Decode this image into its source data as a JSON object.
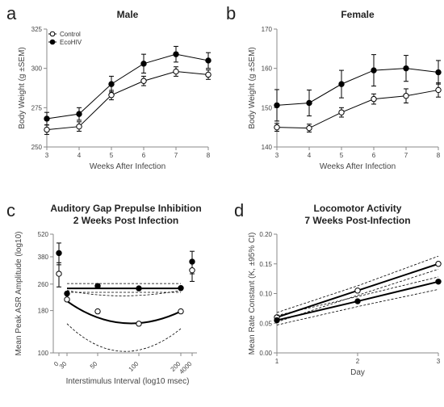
{
  "chart_data": [
    {
      "panel": "a",
      "type": "line",
      "title": "Male",
      "xlabel": "Weeks After Infection",
      "ylabel": "Body Weight (g ±SEM)",
      "x": [
        3,
        4,
        5,
        6,
        7,
        8
      ],
      "xlim": [
        3,
        8
      ],
      "ylim": [
        250,
        325
      ],
      "yticks": [
        250,
        275,
        300,
        325
      ],
      "yticklabels": [
        "250",
        "275",
        "300",
        "325"
      ],
      "xticks": [
        3,
        4,
        5,
        6,
        7,
        8
      ],
      "grid": false,
      "legend": "top-left",
      "series": [
        {
          "name": "Control",
          "marker": "open-circle",
          "values": [
            261,
            263,
            283,
            292,
            298,
            296
          ],
          "err": [
            3,
            3,
            3,
            3,
            3,
            3
          ]
        },
        {
          "name": "EcoHIV",
          "marker": "filled-circle",
          "values": [
            268,
            271,
            290,
            303,
            309,
            305
          ],
          "err": [
            4,
            4,
            5,
            6,
            5,
            5
          ]
        }
      ]
    },
    {
      "panel": "b",
      "type": "line",
      "title": "Female",
      "xlabel": "Weeks After Infection",
      "ylabel": "Body Weight (g ±SEM)",
      "x": [
        3,
        4,
        5,
        6,
        7,
        8
      ],
      "xlim": [
        3,
        8
      ],
      "ylim": [
        140,
        170
      ],
      "yticks": [
        140,
        150,
        160,
        170
      ],
      "yticklabels": [
        "140",
        "150",
        "160",
        "170"
      ],
      "xticks": [
        3,
        4,
        5,
        6,
        7,
        8
      ],
      "grid": false,
      "series": [
        {
          "marker": "open-circle",
          "values": [
            145,
            144.8,
            148.8,
            152.2,
            153,
            154.5
          ],
          "err": [
            1,
            1,
            1.2,
            1.3,
            1.8,
            1.8
          ]
        },
        {
          "marker": "filled-circle",
          "values": [
            150.6,
            151.2,
            156,
            159.5,
            160,
            159
          ],
          "err": [
            4,
            3.3,
            3.5,
            4,
            3.3,
            3
          ]
        }
      ]
    },
    {
      "panel": "c",
      "type": "scatter",
      "title": "Auditory Gap Prepulse Inhibition",
      "subtitle": "2 Weeks Post Infection",
      "xlabel": "Interstimulus Interval (log10 msec)",
      "ylabel": "Mean Peak ASR Amplitude (log10)",
      "xtick_labels": [
        "0",
        "30",
        "50",
        "100",
        "200",
        "4000"
      ],
      "ytick_labels": [
        "100",
        "180",
        "260",
        "380",
        "520"
      ],
      "yticks": [
        100,
        180,
        260,
        380,
        520
      ],
      "ylim": [
        100,
        520
      ],
      "grid": false,
      "series": [
        {
          "marker": "filled-circle",
          "x": [
            "0",
            "30",
            "50",
            "100",
            "200",
            "4000"
          ],
          "values": [
            400,
            228,
            253,
            245,
            246,
            355
          ],
          "err": [
            60,
            0,
            0,
            0,
            0,
            55
          ]
        },
        {
          "marker": "open-circle",
          "x": [
            "0",
            "30",
            "50",
            "100",
            "200",
            "4000"
          ],
          "values": [
            300,
            210,
            178,
            150,
            178,
            315
          ],
          "err": [
            50,
            0,
            0,
            0,
            0,
            45
          ]
        }
      ]
    },
    {
      "panel": "d",
      "type": "line",
      "title": "Locomotor Activity",
      "subtitle": "7 Weeks Post-Infection",
      "xlabel": "Day",
      "ylabel": "Mean Rate Constant (K, ±95% CI)",
      "x": [
        1,
        2,
        3
      ],
      "xlim": [
        1,
        3
      ],
      "ylim": [
        0.0,
        0.2
      ],
      "yticks": [
        0.0,
        0.05,
        0.1,
        0.15,
        0.2
      ],
      "yticklabels": [
        "0.00",
        "0.05",
        "0.10",
        "0.15",
        "0.20"
      ],
      "xticks": [
        1,
        2,
        3
      ],
      "grid": false,
      "series": [
        {
          "marker": "open-circle",
          "values": [
            0.06,
            0.105,
            0.15
          ],
          "ci_low": [
            0.052,
            0.097,
            0.141
          ],
          "ci_high": [
            0.068,
            0.113,
            0.163
          ]
        },
        {
          "marker": "filled-circle",
          "values": [
            0.055,
            0.087,
            0.12
          ],
          "ci_low": [
            0.047,
            0.078,
            0.107
          ],
          "ci_high": [
            0.063,
            0.095,
            0.128
          ]
        }
      ]
    }
  ]
}
